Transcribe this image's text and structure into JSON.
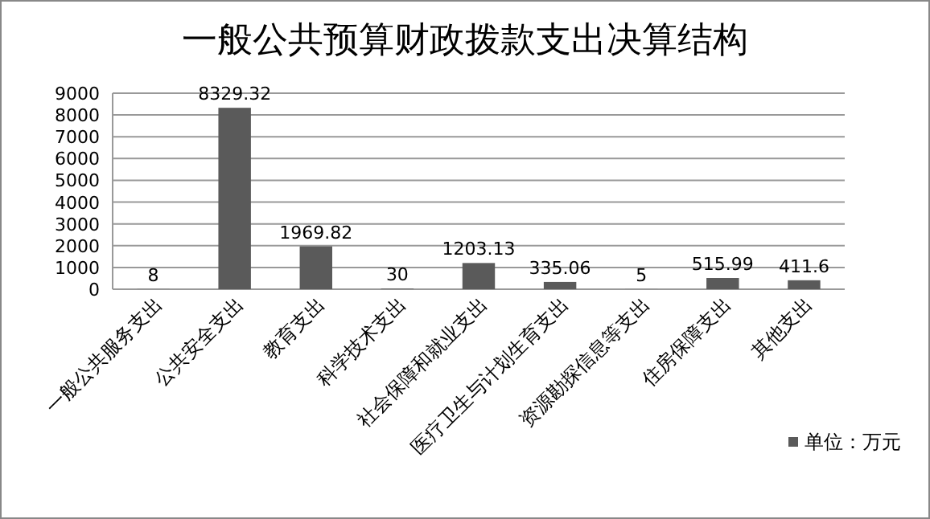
{
  "chart_data": {
    "type": "bar",
    "title": "一般公共预算财政拨款支出决算结构",
    "categories": [
      "一般公共服务支出",
      "公共安全支出",
      "教育支出",
      "科学技术支出",
      "社会保障和就业支出",
      "医疗卫生与计划生育支出",
      "资源勘探信息等支出",
      "住房保障支出",
      "其他支出"
    ],
    "series": [
      {
        "name": "单位：万元",
        "color": "#5a5a5a",
        "values": [
          8,
          8329.32,
          1969.82,
          30,
          1203.13,
          335.06,
          5,
          515.99,
          411.6
        ]
      }
    ],
    "ylim": [
      0,
      9000
    ],
    "yticks": [
      0,
      1000,
      2000,
      3000,
      4000,
      5000,
      6000,
      7000,
      8000,
      9000
    ],
    "grid": "y",
    "legend": "bottom right",
    "data_labels": true
  }
}
